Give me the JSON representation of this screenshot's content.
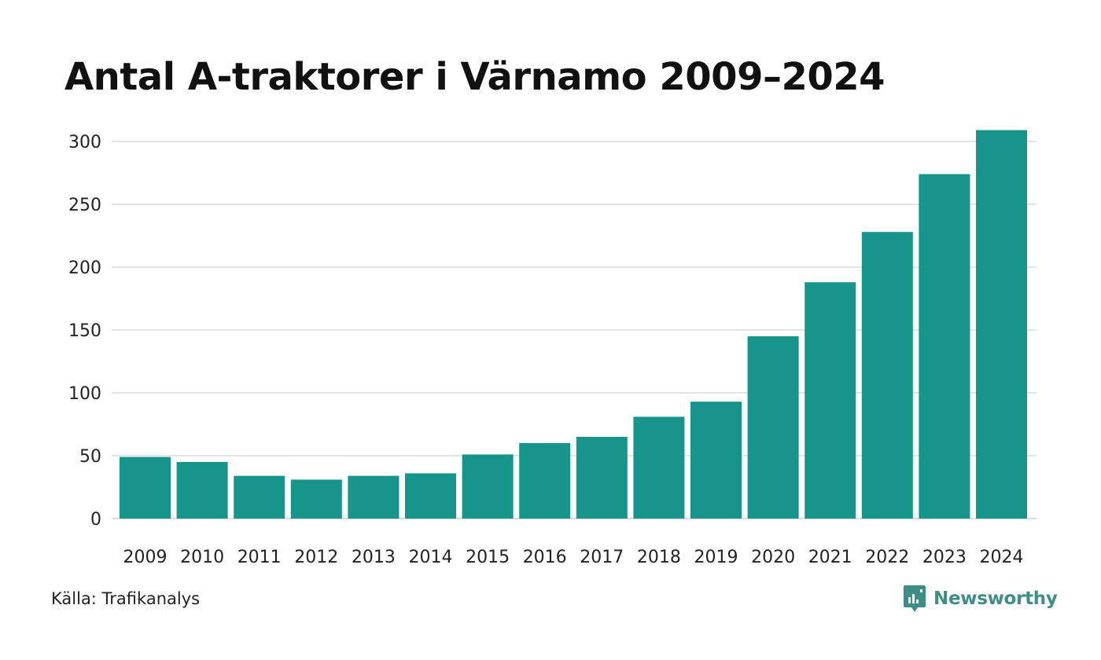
{
  "title": "Antal A-traktorer i Värnamo 2009–2024",
  "source": "Källa: Trafikanalys",
  "brand": {
    "name": "Newsworthy",
    "icon": "newsworthy-logo-icon",
    "color": "#3d8f86"
  },
  "colors": {
    "bar": "#16968a",
    "grid": "#dcdcdc",
    "text": "#222222"
  },
  "chart_data": {
    "type": "bar",
    "title": "Antal A-traktorer i Värnamo 2009–2024",
    "xlabel": "",
    "ylabel": "",
    "categories": [
      "2009",
      "2010",
      "2011",
      "2012",
      "2013",
      "2014",
      "2015",
      "2016",
      "2017",
      "2018",
      "2019",
      "2020",
      "2021",
      "2022",
      "2023",
      "2024"
    ],
    "values": [
      49,
      45,
      34,
      31,
      34,
      36,
      51,
      60,
      65,
      81,
      93,
      145,
      188,
      228,
      274,
      309
    ],
    "yticks": [
      0,
      50,
      100,
      150,
      200,
      250,
      300
    ],
    "ylim": [
      0,
      300
    ],
    "grid": true,
    "legend": "none"
  }
}
